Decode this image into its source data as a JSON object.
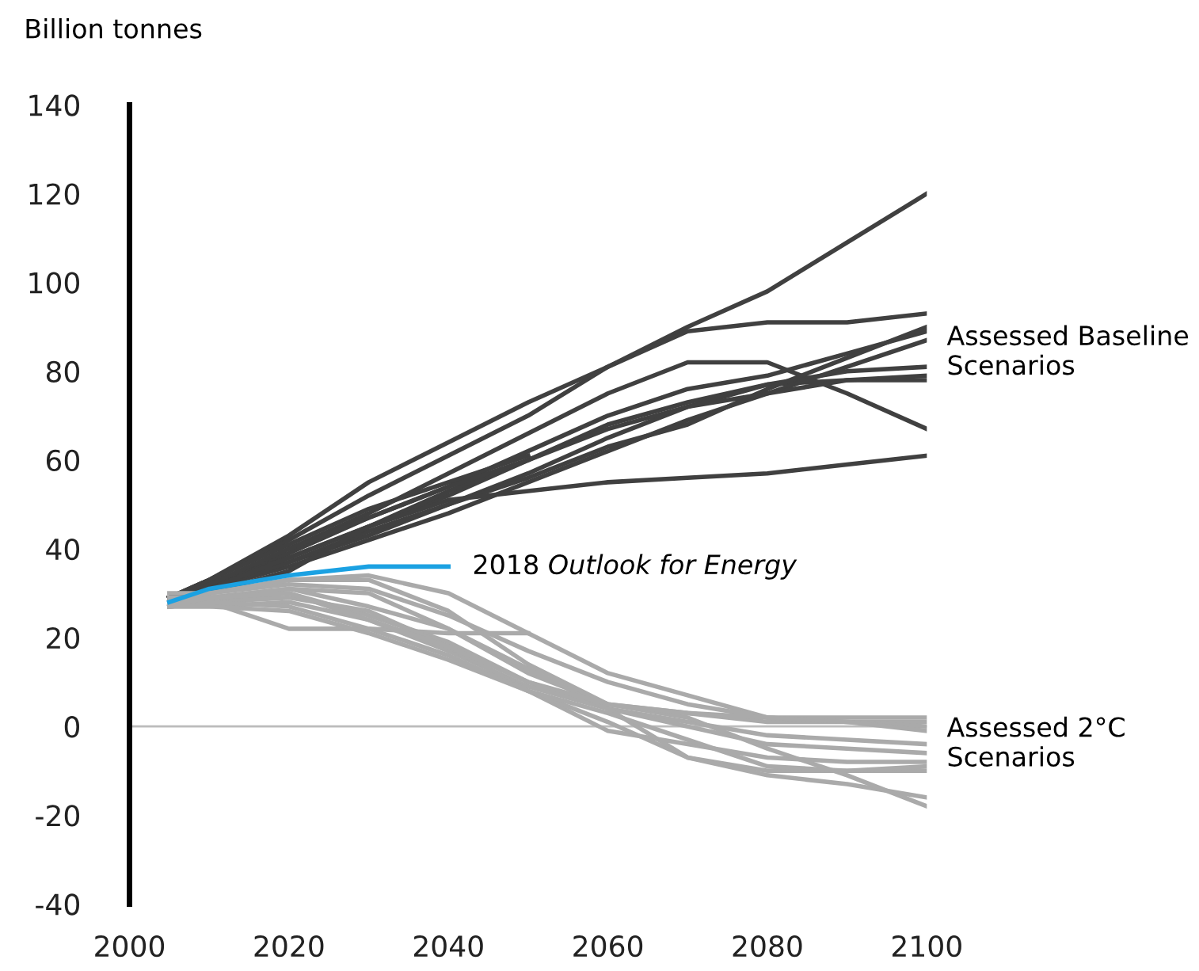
{
  "chart_data": {
    "type": "line",
    "ylabel": "Billion tonnes",
    "x": [
      2005,
      2010,
      2020,
      2030,
      2040,
      2050,
      2060,
      2070,
      2080,
      2090,
      2100
    ],
    "xlim": [
      2000,
      2100
    ],
    "xticks": [
      2000,
      2020,
      2040,
      2060,
      2080,
      2100
    ],
    "ylim": [
      -40,
      140
    ],
    "yticks": [
      -40,
      -20,
      0,
      20,
      40,
      60,
      80,
      100,
      120,
      140
    ],
    "grid": false,
    "legend": false,
    "marker": "none",
    "line_style": "solid",
    "ref_lines": [
      {
        "axis": "y",
        "value": 0,
        "color": "#bbbbbb"
      }
    ],
    "series": [
      {
        "color": "#404040",
        "values": [
          29,
          33,
          43,
          55,
          64,
          73,
          81,
          90,
          98,
          109,
          120
        ]
      },
      {
        "color": "#404040",
        "values": [
          29,
          33,
          42,
          52,
          61,
          70,
          81,
          89,
          91,
          91,
          93
        ]
      },
      {
        "color": "#404040",
        "values": [
          29,
          32,
          40,
          48,
          57,
          66,
          75,
          82,
          82,
          75,
          67
        ]
      },
      {
        "color": "#404040",
        "values": [
          29,
          32,
          39,
          47,
          54,
          62,
          70,
          76,
          79,
          84,
          89
        ]
      },
      {
        "color": "#404040",
        "values": [
          29,
          32,
          38,
          45,
          52,
          60,
          68,
          73,
          77,
          78,
          78
        ]
      },
      {
        "color": "#404040",
        "values": [
          29,
          31,
          37,
          43,
          50,
          57,
          65,
          72,
          77,
          80,
          81
        ]
      },
      {
        "color": "#404040",
        "values": [
          29,
          31,
          36,
          42,
          48,
          55,
          62,
          69,
          75,
          81,
          87
        ]
      },
      {
        "color": "#404040",
        "values": [
          29,
          31,
          37,
          44,
          50,
          56,
          63,
          68,
          76,
          83,
          90
        ]
      },
      {
        "color": "#404040",
        "values": [
          29,
          31,
          38,
          45,
          53,
          60,
          67,
          72,
          75,
          78,
          79
        ]
      },
      {
        "color": "#404040",
        "values": [
          29,
          30,
          35,
          45,
          51,
          53,
          55,
          56,
          57,
          59,
          61
        ]
      },
      {
        "color": "#404040",
        "values": [
          29,
          33,
          41,
          49,
          55,
          61,
          null,
          null,
          null,
          null,
          null
        ]
      },
      {
        "color": "#404040",
        "values": [
          29,
          32,
          40,
          47,
          54,
          60,
          null,
          null,
          null,
          null,
          null
        ]
      },
      {
        "color": "#aaaaaa",
        "values": [
          30,
          30,
          33,
          34,
          30,
          21,
          12,
          7,
          2,
          1,
          1
        ]
      },
      {
        "color": "#aaaaaa",
        "values": [
          28,
          30,
          32,
          31,
          25,
          17,
          10,
          5,
          2,
          2,
          2
        ]
      },
      {
        "color": "#aaaaaa",
        "values": [
          29,
          29,
          31,
          27,
          22,
          12,
          5,
          3,
          1,
          1,
          0
        ]
      },
      {
        "color": "#aaaaaa",
        "values": [
          28,
          28,
          22,
          22,
          21,
          21,
          null,
          null,
          null,
          null,
          null
        ]
      },
      {
        "color": "#aaaaaa",
        "values": [
          27,
          28,
          30,
          25,
          19,
          10,
          4,
          1,
          -2,
          -3,
          -4
        ]
      },
      {
        "color": "#aaaaaa",
        "values": [
          27,
          27,
          28,
          24,
          17,
          9,
          4,
          0,
          -4,
          -5,
          -6
        ]
      },
      {
        "color": "#aaaaaa",
        "values": [
          27,
          28,
          29,
          26,
          18,
          8,
          -1,
          -4,
          -7,
          -8,
          -8
        ]
      },
      {
        "color": "#aaaaaa",
        "values": [
          27,
          28,
          27,
          22,
          16,
          8,
          1,
          -7,
          -10,
          -10,
          -10
        ]
      },
      {
        "color": "#aaaaaa",
        "values": [
          28,
          29,
          31,
          30,
          22,
          13,
          4,
          -7,
          -11,
          -13,
          -16
        ]
      },
      {
        "color": "#aaaaaa",
        "values": [
          28,
          30,
          33,
          33,
          26,
          14,
          5,
          2,
          -5,
          -11,
          -18
        ]
      },
      {
        "color": "#aaaaaa",
        "values": [
          27,
          29,
          30,
          24,
          18,
          10,
          5,
          3,
          2,
          1,
          -1
        ]
      },
      {
        "color": "#aaaaaa",
        "values": [
          27,
          27,
          26,
          21,
          15,
          8,
          3,
          -3,
          -9,
          -10,
          -9
        ]
      },
      {
        "color": "#1ba1e2",
        "values": [
          28,
          31,
          34,
          36,
          36,
          null,
          null,
          null,
          null,
          null,
          null
        ]
      }
    ],
    "annotations": [
      "Assessed Baseline\nScenarios",
      "2018 Outlook for Energy",
      "Assessed 2°C\nScenarios"
    ]
  }
}
